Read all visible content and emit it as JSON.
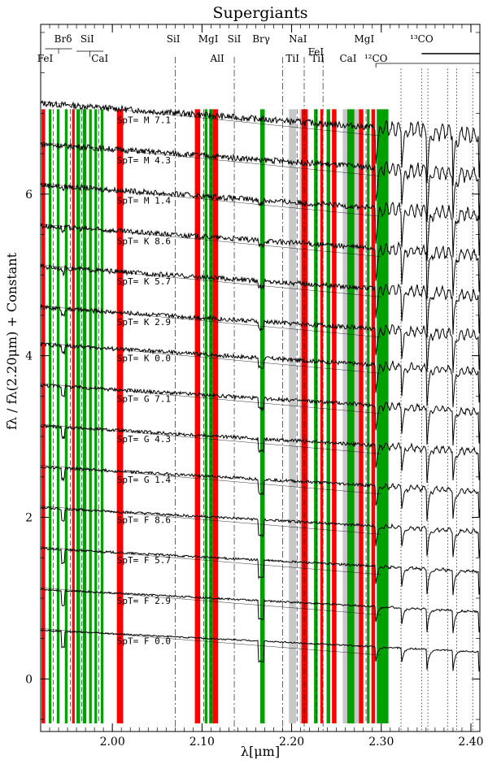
{
  "chart_data": {
    "type": "line",
    "title": "Supergiants",
    "xlabel": "λ[μm]",
    "ylabel": "fλ / fλ(2.20μm) + Constant",
    "xlim": [
      1.92,
      2.41
    ],
    "ylim": [
      -0.65,
      8.1
    ],
    "x_ticks": [
      2.0,
      2.1,
      2.2,
      2.3,
      2.4
    ],
    "x_tick_labels": [
      "2.00",
      "2.10",
      "2.20",
      "2.30",
      "2.40"
    ],
    "y_ticks": [
      0,
      2,
      4,
      6
    ],
    "y_tick_labels": [
      "0",
      "2",
      "4",
      "6"
    ],
    "grid": false,
    "spectra_labels": [
      {
        "label": "SpT=  M  7.1",
        "offset": 6.9
      },
      {
        "label": "SpT=  M  4.3",
        "offset": 6.4
      },
      {
        "label": "SpT=  M  1.4",
        "offset": 5.9
      },
      {
        "label": "SpT=  K  8.6",
        "offset": 5.4
      },
      {
        "label": "SpT=  K  5.7",
        "offset": 4.9
      },
      {
        "label": "SpT=  K  2.9",
        "offset": 4.4
      },
      {
        "label": "SpT=  K  0.0",
        "offset": 3.95
      },
      {
        "label": "SpT=  G  7.1",
        "offset": 3.45
      },
      {
        "label": "SpT=  G  4.3",
        "offset": 2.95
      },
      {
        "label": "SpT=  G  1.4",
        "offset": 2.45
      },
      {
        "label": "SpT=  F  8.6",
        "offset": 1.95
      },
      {
        "label": "SpT=  F  5.7",
        "offset": 1.45
      },
      {
        "label": "SpT=  F  2.9",
        "offset": 0.95
      },
      {
        "label": "SpT=  F  0.0",
        "offset": 0.45
      }
    ],
    "line_ids": [
      {
        "label": "FeI",
        "x": 1.925
      },
      {
        "label": "Brδ",
        "x": 1.945
      },
      {
        "label": "SiI",
        "x": 1.972
      },
      {
        "label": "CaI",
        "x": 1.986
      },
      {
        "label": "SiI",
        "x": 2.068
      },
      {
        "label": "MgI",
        "x": 2.107
      },
      {
        "label": "AlI",
        "x": 2.117
      },
      {
        "label": "SiI",
        "x": 2.136
      },
      {
        "label": "Brγ",
        "x": 2.166
      },
      {
        "label": "TiI",
        "x": 2.201
      },
      {
        "label": "NaI",
        "x": 2.207
      },
      {
        "label": "FeI",
        "x": 2.227
      },
      {
        "label": "TiI",
        "x": 2.229
      },
      {
        "label": "CaI",
        "x": 2.263
      },
      {
        "label": "MgI",
        "x": 2.281
      },
      {
        "label": "¹²CO",
        "x": 2.294
      },
      {
        "label": "¹³CO",
        "x": 2.345
      }
    ],
    "red_bands": [
      [
        1.921,
        1.925
      ],
      [
        1.955,
        1.958
      ],
      [
        2.005,
        2.012
      ],
      [
        2.092,
        2.098
      ],
      [
        2.112,
        2.118
      ],
      [
        2.211,
        2.218
      ],
      [
        2.232,
        2.235
      ],
      [
        2.245,
        2.25
      ],
      [
        2.275,
        2.28
      ],
      [
        2.289,
        2.293
      ]
    ],
    "green_bands": [
      [
        1.929,
        1.932
      ],
      [
        1.938,
        1.941
      ],
      [
        1.947,
        1.95
      ],
      [
        1.96,
        1.964
      ],
      [
        1.967,
        1.971
      ],
      [
        1.974,
        1.977
      ],
      [
        1.98,
        1.983
      ],
      [
        1.987,
        1.99
      ],
      [
        2.103,
        2.106
      ],
      [
        2.108,
        2.112
      ],
      [
        2.165,
        2.17
      ],
      [
        2.225,
        2.229
      ],
      [
        2.239,
        2.243
      ],
      [
        2.262,
        2.27
      ],
      [
        2.284,
        2.287
      ],
      [
        2.295,
        2.308
      ]
    ],
    "gray_bands": [
      [
        2.197,
        2.205
      ],
      [
        2.209,
        2.211
      ],
      [
        2.257,
        2.262
      ],
      [
        2.27,
        2.275
      ]
    ],
    "solid_lines": [
      1.934,
      1.953,
      1.966,
      1.985,
      2.102,
      2.11,
      2.206,
      2.228,
      2.283
    ],
    "dashdot_lines": [
      2.07,
      2.136,
      2.19,
      2.214,
      2.235
    ],
    "dotted_lines": [
      2.322,
      2.345,
      2.352,
      2.374,
      2.384,
      2.402
    ],
    "colors": {
      "red": "#ff0000",
      "green": "#00a000",
      "gray": "#c8c8c8",
      "line": "#000000"
    }
  }
}
